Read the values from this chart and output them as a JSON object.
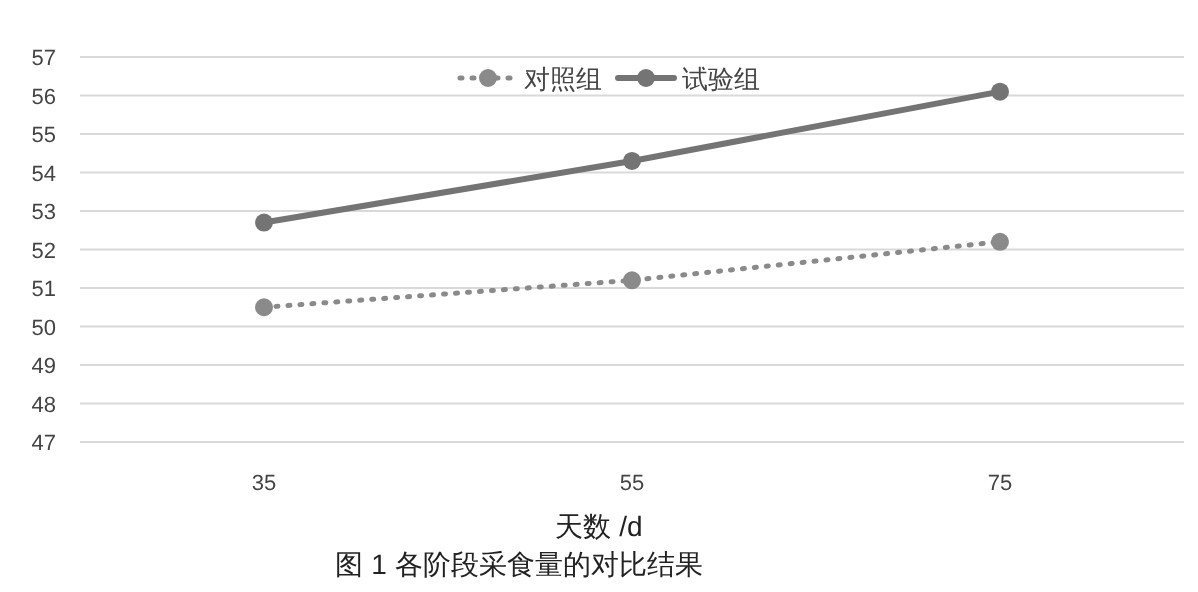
{
  "chart_data": {
    "type": "line",
    "xlabel": "天数 /d",
    "annotations": [
      "图 1  各阶段采食量的对比结果"
    ],
    "categories": [
      "35",
      "55",
      "75"
    ],
    "series": [
      {
        "name": "对照组",
        "color": "#8a8a8a",
        "line_style": "dotted",
        "values": [
          50.5,
          51.2,
          52.2
        ]
      },
      {
        "name": "试验组",
        "color": "#747474",
        "line_style": "solid",
        "values": [
          52.7,
          54.3,
          56.1
        ]
      }
    ],
    "ylim": [
      47,
      57
    ],
    "yticks": [
      47,
      48,
      49,
      50,
      51,
      52,
      53,
      54,
      55,
      56,
      57
    ],
    "grid": "y",
    "legend": "top",
    "marker": "circle"
  }
}
